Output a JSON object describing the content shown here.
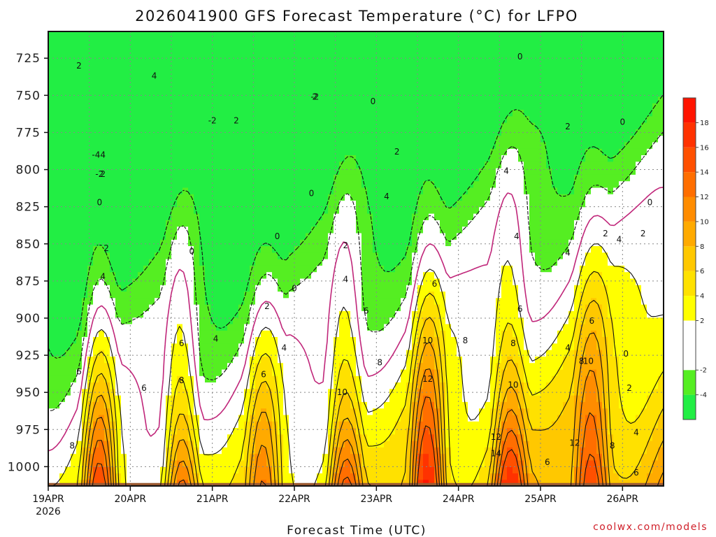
{
  "chart_data": {
    "type": "heatmap",
    "title": "2026041900 GFS Forecast Temperature (°C) for LFPO",
    "xlabel": "Forecast Time (UTC)",
    "ylabel": "",
    "credit": "coolwx.com/models",
    "x_unit": "hours since 2026-04-19 00 UTC",
    "x_range": [
      0,
      180
    ],
    "y_unit": "hPa",
    "y_range": [
      1013,
      707
    ],
    "y_ticks": [
      725,
      750,
      775,
      800,
      825,
      850,
      875,
      900,
      925,
      950,
      975,
      1000
    ],
    "x_ticks": [
      {
        "hour": 0,
        "label": "19APR",
        "sublabel": "2026"
      },
      {
        "hour": 24,
        "label": "20APR"
      },
      {
        "hour": 48,
        "label": "21APR"
      },
      {
        "hour": 72,
        "label": "22APR"
      },
      {
        "hour": 96,
        "label": "23APR"
      },
      {
        "hour": 120,
        "label": "24APR"
      },
      {
        "hour": 144,
        "label": "25APR"
      },
      {
        "hour": 168,
        "label": "26APR"
      }
    ],
    "colorbar": {
      "ticks": [
        -4,
        -2,
        2,
        4,
        6,
        8,
        10,
        12,
        14,
        16,
        18
      ],
      "bins": [
        {
          "min": -6,
          "max": -4,
          "color": "#22ee44"
        },
        {
          "min": -4,
          "max": -2,
          "color": "#55ee22"
        },
        {
          "min": -2,
          "max": 0,
          "color": "#ffffff"
        },
        {
          "min": 0,
          "max": 2,
          "color": "#ffffff"
        },
        {
          "min": 2,
          "max": 4,
          "color": "#ffff00"
        },
        {
          "min": 4,
          "max": 6,
          "color": "#ffe100"
        },
        {
          "min": 6,
          "max": 8,
          "color": "#ffc800"
        },
        {
          "min": 8,
          "max": 10,
          "color": "#ffaa00"
        },
        {
          "min": 10,
          "max": 12,
          "color": "#ff8c00"
        },
        {
          "min": 12,
          "max": 14,
          "color": "#ff6e00"
        },
        {
          "min": 14,
          "max": 16,
          "color": "#ff5000"
        },
        {
          "min": 16,
          "max": 18,
          "color": "#ff3200"
        },
        {
          "min": 18,
          "max": 20,
          "color": "#ff1400"
        }
      ]
    },
    "contour_levels": [
      -4,
      -2,
      0,
      2,
      4,
      6,
      8,
      10,
      12,
      14
    ],
    "temperature_model": {
      "surface_base_by_day": [
        {
          "hour": 15,
          "tmax": 17,
          "tmin_at": 3
        },
        {
          "hour": 39,
          "tmax": 15
        },
        {
          "hour": 63,
          "tmax": 13
        },
        {
          "hour": 87,
          "tmax": 15
        },
        {
          "hour": 111,
          "tmax": 18
        },
        {
          "hour": 135,
          "tmax": 15
        },
        {
          "hour": 159,
          "tmax": 14
        }
      ]
    },
    "surface_color": "#9a5a32",
    "freezing_line_color": "#c0267a",
    "contour_color": "#111111",
    "contour_labels": [
      {
        "hour": 9,
        "hpa": 730,
        "text": "2"
      },
      {
        "hour": 31,
        "hpa": 737,
        "text": "4"
      },
      {
        "hour": 55,
        "hpa": 767,
        "text": "2"
      },
      {
        "hour": 78,
        "hpa": 751,
        "text": "2"
      },
      {
        "hour": 95,
        "hpa": 754,
        "text": "0"
      },
      {
        "hour": 138,
        "hpa": 724,
        "text": "0"
      },
      {
        "hour": 168,
        "hpa": 768,
        "text": "0"
      },
      {
        "hour": 16,
        "hpa": 790,
        "text": "4"
      },
      {
        "hour": 16,
        "hpa": 803,
        "text": "2"
      },
      {
        "hour": 15,
        "hpa": 822,
        "text": "0"
      },
      {
        "hour": 77,
        "hpa": 816,
        "text": "0"
      },
      {
        "hour": 67,
        "hpa": 845,
        "text": "0"
      },
      {
        "hour": 42,
        "hpa": 855,
        "text": "0"
      },
      {
        "hour": 72,
        "hpa": 880,
        "text": "0"
      },
      {
        "hour": 17,
        "hpa": 853,
        "text": "2"
      },
      {
        "hour": 64,
        "hpa": 892,
        "text": "2"
      },
      {
        "hour": 87,
        "hpa": 851,
        "text": "2"
      },
      {
        "hour": 102,
        "hpa": 788,
        "text": "2"
      },
      {
        "hour": 152,
        "hpa": 771,
        "text": "2"
      },
      {
        "hour": 163,
        "hpa": 843,
        "text": "2"
      },
      {
        "hour": 174,
        "hpa": 843,
        "text": "2"
      },
      {
        "hour": 16,
        "hpa": 872,
        "text": "4"
      },
      {
        "hour": 49,
        "hpa": 914,
        "text": "4"
      },
      {
        "hour": 69,
        "hpa": 920,
        "text": "4"
      },
      {
        "hour": 87,
        "hpa": 874,
        "text": "4"
      },
      {
        "hour": 99,
        "hpa": 818,
        "text": "4"
      },
      {
        "hour": 134,
        "hpa": 801,
        "text": "4"
      },
      {
        "hour": 137,
        "hpa": 845,
        "text": "4"
      },
      {
        "hour": 152,
        "hpa": 856,
        "text": "4"
      },
      {
        "hour": 152,
        "hpa": 920,
        "text": "4"
      },
      {
        "hour": 167,
        "hpa": 847,
        "text": "4"
      },
      {
        "hour": 172,
        "hpa": 977,
        "text": "4"
      },
      {
        "hour": 9,
        "hpa": 936,
        "text": "6"
      },
      {
        "hour": 28,
        "hpa": 947,
        "text": "6"
      },
      {
        "hour": 39,
        "hpa": 917,
        "text": "6"
      },
      {
        "hour": 63,
        "hpa": 938,
        "text": "6"
      },
      {
        "hour": 93,
        "hpa": 895,
        "text": "6"
      },
      {
        "hour": 113,
        "hpa": 877,
        "text": "6"
      },
      {
        "hour": 138,
        "hpa": 894,
        "text": "6"
      },
      {
        "hour": 159,
        "hpa": 902,
        "text": "6"
      },
      {
        "hour": 172,
        "hpa": 1004,
        "text": "6"
      },
      {
        "hour": 146,
        "hpa": 997,
        "text": "6"
      },
      {
        "hour": 7,
        "hpa": 986,
        "text": "8"
      },
      {
        "hour": 39,
        "hpa": 942,
        "text": "8"
      },
      {
        "hour": 97,
        "hpa": 930,
        "text": "8"
      },
      {
        "hour": 122,
        "hpa": 915,
        "text": "8"
      },
      {
        "hour": 136,
        "hpa": 917,
        "text": "8"
      },
      {
        "hour": 156,
        "hpa": 929,
        "text": "8"
      },
      {
        "hour": 165,
        "hpa": 986,
        "text": "8"
      },
      {
        "hour": 86,
        "hpa": 950,
        "text": "10"
      },
      {
        "hour": 111,
        "hpa": 915,
        "text": "10"
      },
      {
        "hour": 136,
        "hpa": 945,
        "text": "10"
      },
      {
        "hour": 158,
        "hpa": 929,
        "text": "10"
      },
      {
        "hour": 111,
        "hpa": 941,
        "text": "12"
      },
      {
        "hour": 131,
        "hpa": 980,
        "text": "12"
      },
      {
        "hour": 154,
        "hpa": 984,
        "text": "12"
      },
      {
        "hour": 131,
        "hpa": 991,
        "text": "14"
      },
      {
        "hour": 14,
        "hpa": 790,
        "text": "-4"
      },
      {
        "hour": 15,
        "hpa": 803,
        "text": "-2"
      },
      {
        "hour": 78,
        "hpa": 751,
        "text": "-2"
      },
      {
        "hour": 48,
        "hpa": 767,
        "text": "-2"
      },
      {
        "hour": 169,
        "hpa": 924,
        "text": "0"
      },
      {
        "hour": 170,
        "hpa": 947,
        "text": "2"
      },
      {
        "hour": 176,
        "hpa": 822,
        "text": "0"
      }
    ]
  }
}
